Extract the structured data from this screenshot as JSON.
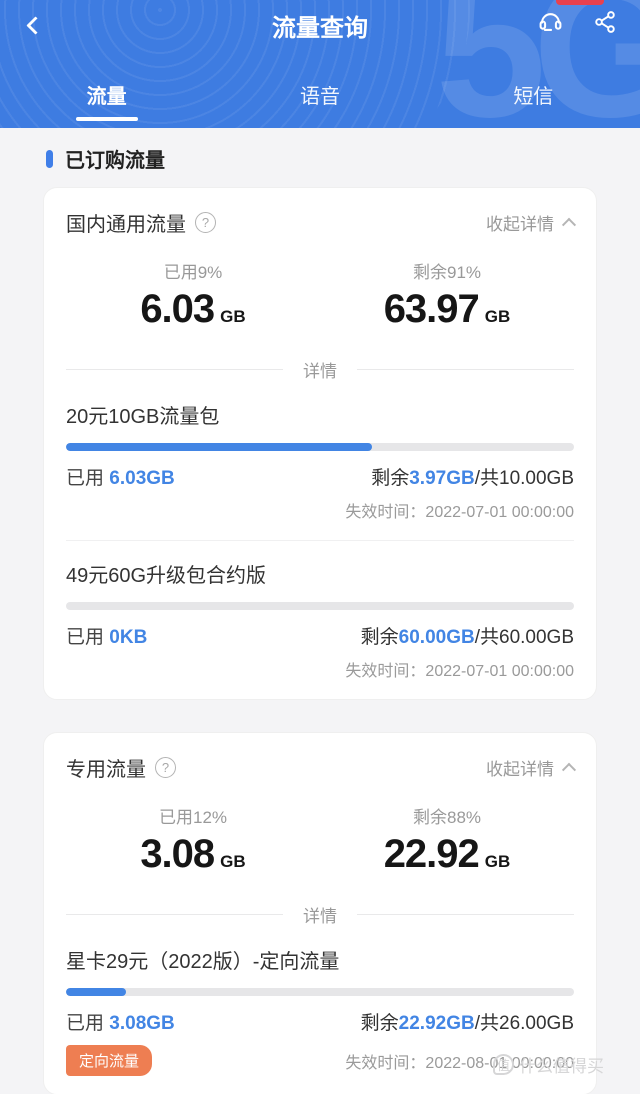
{
  "header": {
    "title": "流量查询",
    "watermark_text": "5G",
    "tabs": [
      {
        "label": "流量",
        "active": true
      },
      {
        "label": "语音",
        "active": false
      },
      {
        "label": "短信",
        "active": false
      }
    ]
  },
  "section": {
    "title": "已订购流量"
  },
  "icons": {
    "help_glyph": "?"
  },
  "colors": {
    "header_blue": "#3e7ce1",
    "accent_blue": "#4285e4",
    "badge_orange": "#ee7e52",
    "indicator_red": "#e8414e"
  },
  "cards": [
    {
      "title": "国内通用流量",
      "collapse_label": "收起详情",
      "used_label": "已用9%",
      "used_value": "6.03",
      "used_unit": "GB",
      "remain_label": "剩余91%",
      "remain_value": "63.97",
      "remain_unit": "GB",
      "divider_label": "详情",
      "packages": [
        {
          "name": "20元10GB流量包",
          "percent": 60.3,
          "used_label": "已用 ",
          "used_value": "6.03GB",
          "remain_label": "剩余",
          "remain_value": "3.97GB",
          "total_suffix": "/共10.00GB",
          "expire": "失效时间：2022-07-01 00:00:00"
        },
        {
          "name": "49元60G升级包合约版",
          "percent": 0,
          "used_label": "已用 ",
          "used_value": "0KB",
          "remain_label": "剩余",
          "remain_value": "60.00GB",
          "total_suffix": "/共60.00GB",
          "expire": "失效时间：2022-07-01 00:00:00"
        }
      ]
    },
    {
      "title": "专用流量",
      "collapse_label": "收起详情",
      "used_label": "已用12%",
      "used_value": "3.08",
      "used_unit": "GB",
      "remain_label": "剩余88%",
      "remain_value": "22.92",
      "remain_unit": "GB",
      "divider_label": "详情",
      "packages": [
        {
          "name": "星卡29元（2022版）-定向流量",
          "percent": 11.8,
          "used_label": "已用 ",
          "used_value": "3.08GB",
          "remain_label": "剩余",
          "remain_value": "22.92GB",
          "total_suffix": "/共26.00GB",
          "badge": "定向流量",
          "expire": "失效时间：2022-08-01 00:00:00"
        }
      ]
    }
  ],
  "watermark": {
    "logo": "值",
    "text": "什么值得买"
  }
}
